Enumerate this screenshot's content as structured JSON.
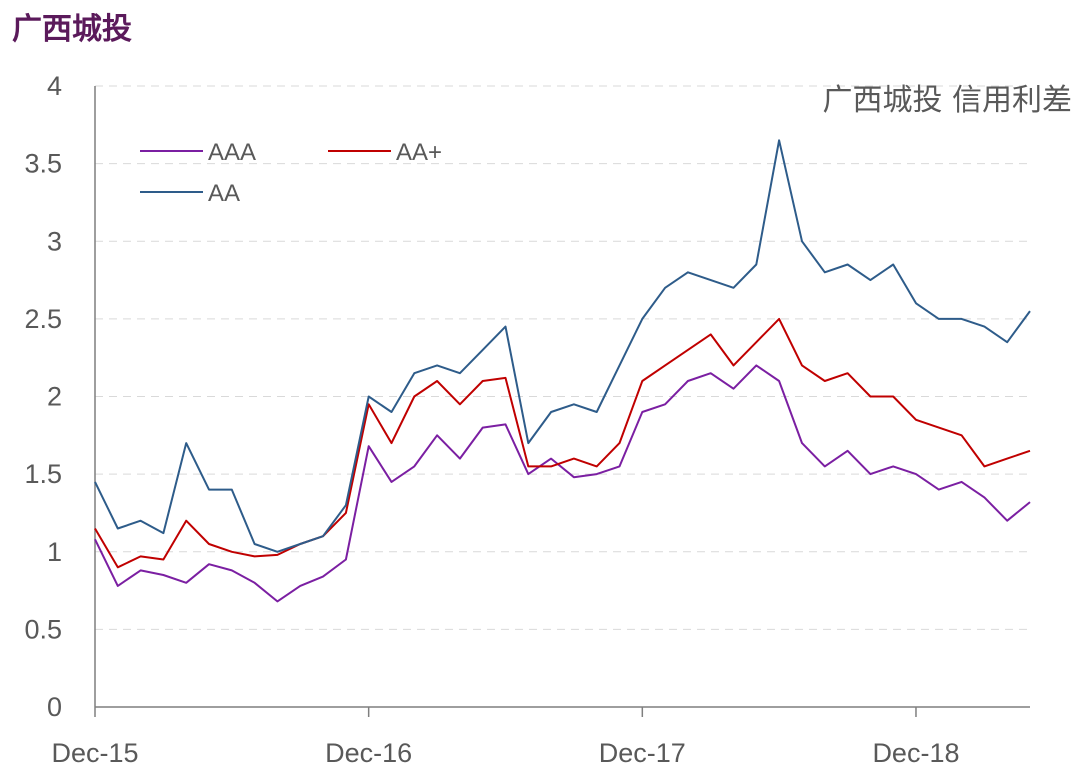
{
  "header": {
    "title": "广西城投"
  },
  "chart_data": {
    "type": "line",
    "title": "广西城投 信用利差",
    "xlabel": "",
    "ylabel": "",
    "ylim": [
      0,
      4
    ],
    "yticks": [
      "0",
      "0.5",
      "1",
      "1.5",
      "2",
      "2.5",
      "3",
      "3.5",
      "4"
    ],
    "xticks": [
      "Dec-15",
      "Dec-16",
      "Dec-17",
      "Dec-18"
    ],
    "x": [
      "Dec-15",
      "Jan-16",
      "Feb-16",
      "Mar-16",
      "Apr-16",
      "May-16",
      "Jun-16",
      "Jul-16",
      "Aug-16",
      "Sep-16",
      "Oct-16",
      "Nov-16",
      "Dec-16",
      "Jan-17",
      "Feb-17",
      "Mar-17",
      "Apr-17",
      "May-17",
      "Jun-17",
      "Jul-17",
      "Aug-17",
      "Sep-17",
      "Oct-17",
      "Nov-17",
      "Dec-17",
      "Jan-18",
      "Feb-18",
      "Mar-18",
      "Apr-18",
      "May-18",
      "Jun-18",
      "Jul-18",
      "Aug-18",
      "Sep-18",
      "Oct-18",
      "Nov-18",
      "Dec-18",
      "Jan-19",
      "Feb-19",
      "Mar-19",
      "Apr-19",
      "May-19"
    ],
    "series": [
      {
        "name": "AAA",
        "color": "#7b1fa2",
        "values": [
          1.08,
          0.78,
          0.88,
          0.85,
          0.8,
          0.92,
          0.88,
          0.8,
          0.68,
          0.78,
          0.84,
          0.95,
          1.68,
          1.45,
          1.55,
          1.75,
          1.6,
          1.8,
          1.82,
          1.5,
          1.6,
          1.48,
          1.5,
          1.55,
          1.9,
          1.95,
          2.1,
          2.15,
          2.05,
          2.2,
          2.1,
          1.7,
          1.55,
          1.65,
          1.5,
          1.55,
          1.5,
          1.4,
          1.45,
          1.35,
          1.2,
          1.32
        ]
      },
      {
        "name": "AA+",
        "color": "#c00000",
        "values": [
          1.15,
          0.9,
          0.97,
          0.95,
          1.2,
          1.05,
          1.0,
          0.97,
          0.98,
          1.05,
          1.1,
          1.25,
          1.95,
          1.7,
          2.0,
          2.1,
          1.95,
          2.1,
          2.12,
          1.55,
          1.55,
          1.6,
          1.55,
          1.7,
          2.1,
          2.2,
          2.3,
          2.4,
          2.2,
          2.35,
          2.5,
          2.2,
          2.1,
          2.15,
          2.0,
          2.0,
          1.85,
          1.8,
          1.75,
          1.55,
          1.6,
          1.65
        ]
      },
      {
        "name": "AA",
        "color": "#2e5c8a",
        "values": [
          1.45,
          1.15,
          1.2,
          1.12,
          1.7,
          1.4,
          1.4,
          1.05,
          1.0,
          1.05,
          1.1,
          1.3,
          2.0,
          1.9,
          2.15,
          2.2,
          2.15,
          2.3,
          2.45,
          1.7,
          1.9,
          1.95,
          1.9,
          2.2,
          2.5,
          2.7,
          2.8,
          2.75,
          2.7,
          2.85,
          3.65,
          3.0,
          2.8,
          2.85,
          2.75,
          2.85,
          2.6,
          2.5,
          2.5,
          2.45,
          2.35,
          2.55
        ]
      }
    ],
    "legend_position": "top-left",
    "grid": "horizontal-dashed"
  }
}
